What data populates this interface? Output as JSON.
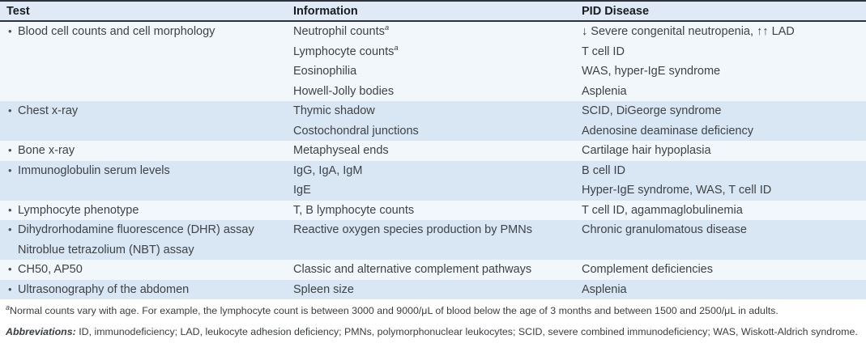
{
  "table": {
    "columns": [
      {
        "key": "test",
        "label": "Test"
      },
      {
        "key": "info",
        "label": "Information"
      },
      {
        "key": "pid",
        "label": "PID Disease"
      }
    ],
    "rows": [
      {
        "test": [
          {
            "text": "Blood cell counts and cell morphology",
            "bullet": true
          }
        ],
        "info": [
          {
            "text": "Neutrophil counts",
            "sup": "a"
          },
          {
            "text": "Lymphocyte counts",
            "sup": "a"
          },
          {
            "text": "Eosinophilia"
          },
          {
            "text": "Howell-Jolly bodies"
          }
        ],
        "pid": [
          "↓ Severe congenital neutropenia, ↑↑ LAD",
          "T cell ID",
          "WAS, hyper-IgE syndrome",
          "Asplenia"
        ]
      },
      {
        "test": [
          {
            "text": "Chest x-ray",
            "bullet": true
          }
        ],
        "info": [
          {
            "text": "Thymic shadow"
          },
          {
            "text": "Costochondral junctions"
          }
        ],
        "pid": [
          "SCID, DiGeorge syndrome",
          "Adenosine deaminase deficiency"
        ]
      },
      {
        "test": [
          {
            "text": "Bone x-ray",
            "bullet": true
          }
        ],
        "info": [
          {
            "text": "Metaphyseal ends"
          }
        ],
        "pid": [
          "Cartilage hair hypoplasia"
        ]
      },
      {
        "test": [
          {
            "text": "Immunoglobulin serum levels",
            "bullet": true
          }
        ],
        "info": [
          {
            "text": "IgG, IgA, IgM"
          },
          {
            "text": "IgE"
          }
        ],
        "pid": [
          "B cell ID",
          "Hyper-IgE syndrome, WAS, T cell ID"
        ]
      },
      {
        "test": [
          {
            "text": "Lymphocyte phenotype",
            "bullet": true
          }
        ],
        "info": [
          {
            "text": "T, B lymphocyte counts"
          }
        ],
        "pid": [
          "T cell ID, agammaglobulinemia"
        ]
      },
      {
        "test": [
          {
            "text": "Dihydrorhodamine fluorescence (DHR) assay",
            "bullet": true
          },
          {
            "text": "Nitroblue tetrazolium (NBT) assay",
            "bullet": false
          }
        ],
        "info": [
          {
            "text": "Reactive oxygen species production by PMNs"
          }
        ],
        "pid": [
          "Chronic granulomatous disease"
        ]
      },
      {
        "test": [
          {
            "text": "CH50, AP50",
            "bullet": true
          }
        ],
        "info": [
          {
            "text": "Classic and alternative complement pathways"
          }
        ],
        "pid": [
          "Complement deficiencies"
        ]
      },
      {
        "test": [
          {
            "text": "Ultrasonography of the abdomen",
            "bullet": true
          }
        ],
        "info": [
          {
            "text": "Spleen size"
          }
        ],
        "pid": [
          "Asplenia"
        ]
      }
    ],
    "footnotes": {
      "note": {
        "sup": "a",
        "text": "Normal counts vary with age. For example, the lymphocyte count is between 3000 and 9000/μL of blood below the age of 3 months and between 1500 and 2500/μL in adults."
      },
      "abbreviations": {
        "label": "Abbreviations:",
        "text": "ID, immunodeficiency; LAD, leukocyte adhesion deficiency; PMNs, polymorphonuclear leukocytes; SCID, severe combined immunodeficiency; WAS, Wiskott-Aldrich syndrome."
      }
    },
    "colors": {
      "header_bg": "#dfeaf6",
      "row_blue": "#d9e6f3",
      "row_pale": "#f1f7fb",
      "rule": "#2e333a",
      "text": "#3f4347"
    }
  }
}
